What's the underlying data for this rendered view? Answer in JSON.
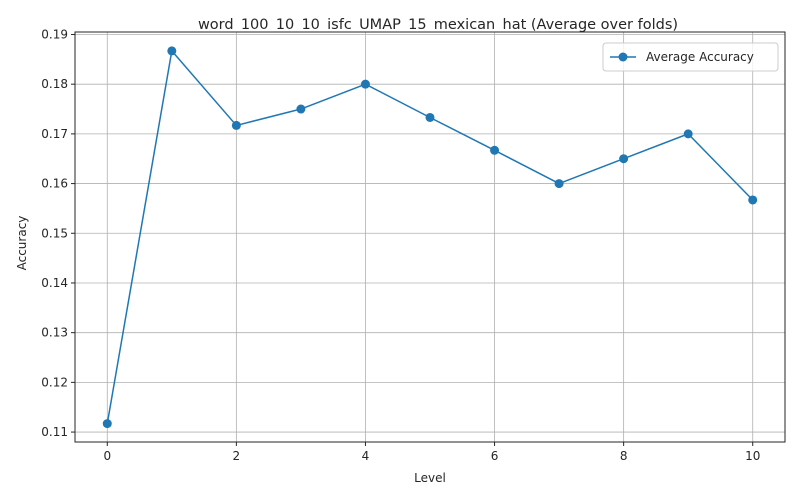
{
  "chart_data": {
    "type": "line",
    "title": "word_100_10_10_isfc_UMAP_15_mexican_hat (Average over folds)",
    "xlabel": "Level",
    "ylabel": "Accuracy",
    "xlim": [
      -0.5,
      10.5
    ],
    "ylim": [
      0.108,
      0.1905
    ],
    "x_ticks": [
      0,
      2,
      4,
      6,
      8,
      10
    ],
    "y_ticks": [
      0.11,
      0.12,
      0.13,
      0.14,
      0.15,
      0.16,
      0.17,
      0.18,
      0.19
    ],
    "x_tick_labels": [
      "0",
      "2",
      "4",
      "6",
      "8",
      "10"
    ],
    "y_tick_labels": [
      "0.11",
      "0.12",
      "0.13",
      "0.14",
      "0.15",
      "0.16",
      "0.17",
      "0.18",
      "0.19"
    ],
    "grid": true,
    "legend_position": "top-right",
    "series": [
      {
        "name": "Average Accuracy",
        "color": "#1f77b4",
        "marker": "circle",
        "x": [
          0,
          1,
          2,
          3,
          4,
          5,
          6,
          7,
          8,
          9,
          10
        ],
        "values": [
          0.1117,
          0.1867,
          0.1717,
          0.175,
          0.18,
          0.1733,
          0.1667,
          0.16,
          0.165,
          0.17,
          0.1567
        ]
      }
    ]
  }
}
